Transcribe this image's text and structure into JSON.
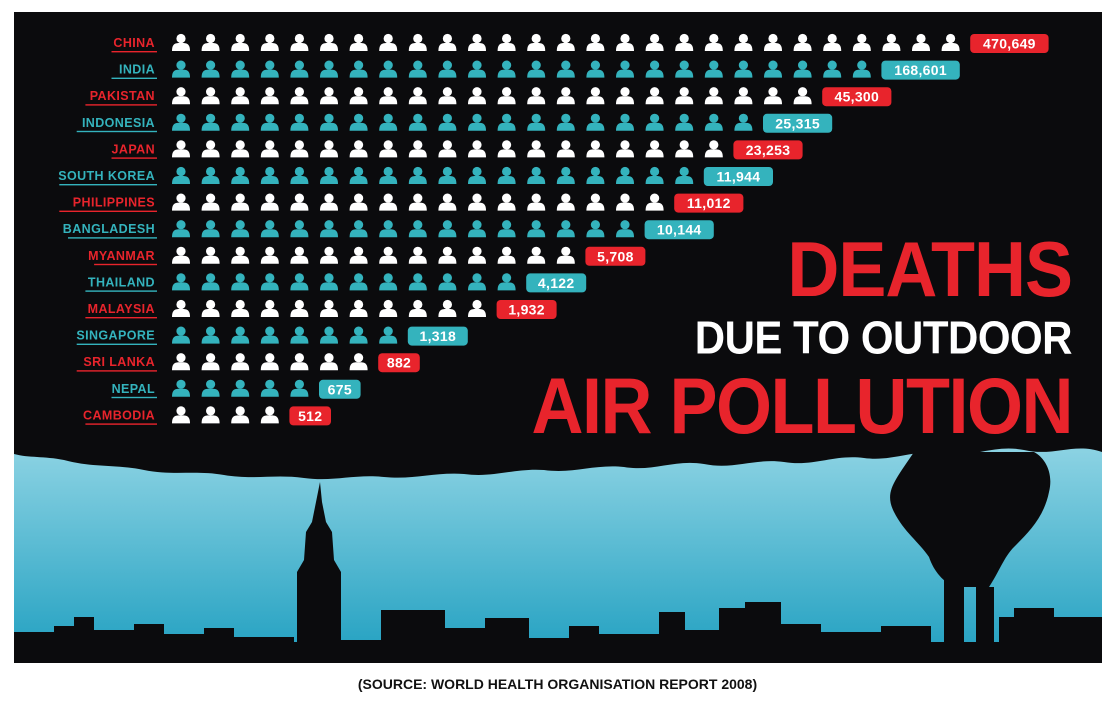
{
  "title": {
    "line1": "DEATHS",
    "line2": "DUE TO OUTDOOR",
    "line3": "AIR POLLUTION"
  },
  "source": "(SOURCE: WORLD HEALTH ORGANISATION REPORT 2008)",
  "colors": {
    "background": "#0b0b0d",
    "red": "#e8242c",
    "teal": "#34b3bd",
    "white_icon": "#ffffff",
    "sky_top": "#8fd4e4",
    "sky_bottom": "#1f9fc0"
  },
  "icon_name": "person-icon",
  "chart_data": {
    "type": "bar",
    "categories": [
      "CHINA",
      "INDIA",
      "PAKISTAN",
      "INDONESIA",
      "JAPAN",
      "SOUTH KOREA",
      "PHILIPPINES",
      "BANGLADESH",
      "MYANMAR",
      "THAILAND",
      "MALAYSIA",
      "SINGAPORE",
      "SRI LANKA",
      "NEPAL",
      "CAMBODIA"
    ],
    "values": [
      470649,
      168601,
      45300,
      25315,
      23253,
      11944,
      11012,
      10144,
      5708,
      4122,
      1932,
      1318,
      882,
      675,
      512
    ],
    "value_labels": [
      "470,649",
      "168,601",
      "45,300",
      "25,315",
      "23,253",
      "11,944",
      "11,012",
      "10,144",
      "5,708",
      "4,122",
      "1,932",
      "1,318",
      "882",
      "675",
      "512"
    ],
    "icon_counts": [
      27,
      24,
      22,
      20,
      19,
      18,
      17,
      16,
      14,
      12,
      11,
      8,
      7,
      5,
      4
    ],
    "row_colors": [
      "red",
      "teal",
      "red",
      "teal",
      "red",
      "teal",
      "red",
      "teal",
      "red",
      "teal",
      "red",
      "teal",
      "red",
      "teal",
      "red"
    ]
  }
}
